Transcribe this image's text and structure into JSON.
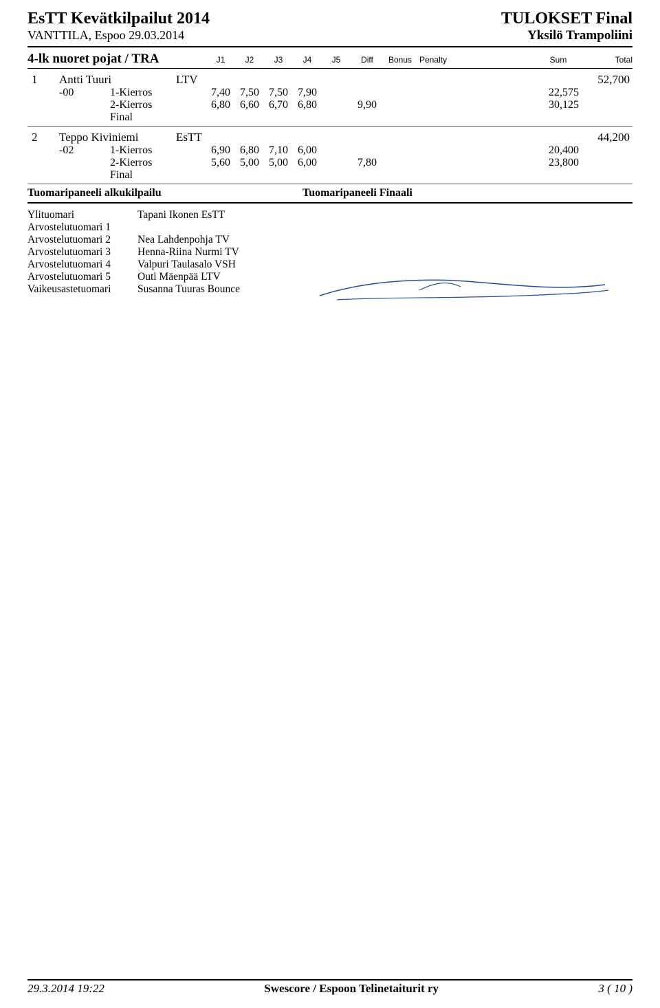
{
  "header": {
    "title_left": "EsTT Kevätkilpailut 2014",
    "title_right": "TULOKSET Final",
    "sub_left": "VANTTILA, Espoo 29.03.2014",
    "sub_right": "Yksilö Trampoliini"
  },
  "category": {
    "name": "4-lk nuoret pojat / TRA",
    "cols": [
      "J1",
      "J2",
      "J3",
      "J4",
      "J5",
      "Diff",
      "Bonus",
      "Penalty",
      "Sum",
      "Total"
    ]
  },
  "results": [
    {
      "rank": "1",
      "athlete": "Antti Tuuri",
      "club": "LTV",
      "total": "52,700",
      "id": "-00",
      "rounds": [
        {
          "label": "1-Kierros",
          "j": [
            "7,40",
            "7,50",
            "7,50",
            "7,90",
            "",
            "",
            "",
            ""
          ],
          "sum": "22,575"
        },
        {
          "label": "2-Kierros",
          "j": [
            "6,80",
            "6,60",
            "6,70",
            "6,80",
            "",
            "9,90",
            "",
            ""
          ],
          "sum": "30,125"
        },
        {
          "label": "Final",
          "j": [
            "",
            "",
            "",
            "",
            "",
            "",
            "",
            ""
          ],
          "sum": ""
        }
      ]
    },
    {
      "rank": "2",
      "athlete": "Teppo Kiviniemi",
      "club": "EsTT",
      "total": "44,200",
      "id": "-02",
      "rounds": [
        {
          "label": "1-Kierros",
          "j": [
            "6,90",
            "6,80",
            "7,10",
            "6,00",
            "",
            "",
            "",
            ""
          ],
          "sum": "20,400"
        },
        {
          "label": "2-Kierros",
          "j": [
            "5,60",
            "5,00",
            "5,00",
            "6,00",
            "",
            "7,80",
            "",
            ""
          ],
          "sum": "23,800"
        },
        {
          "label": "Final",
          "j": [
            "",
            "",
            "",
            "",
            "",
            "",
            "",
            ""
          ],
          "sum": ""
        }
      ]
    }
  ],
  "panels": {
    "left_head": "Tuomaripaneeli alkukilpailu",
    "right_head": "Tuomaripaneeli Finaali"
  },
  "judges": [
    {
      "role": "Ylituomari",
      "name": "Tapani Ikonen  EsTT"
    },
    {
      "role": "Arvostelutuomari 1",
      "name": ""
    },
    {
      "role": "Arvostelutuomari 2",
      "name": "Nea Lahdenpohja  TV"
    },
    {
      "role": "Arvostelutuomari 3",
      "name": "Henna-Riina Nurmi  TV"
    },
    {
      "role": "Arvostelutuomari 4",
      "name": "Valpuri Taulasalo  VSH"
    },
    {
      "role": "Arvostelutuomari 5",
      "name": "Outi Mäenpää  LTV"
    },
    {
      "role": "Vaikeusastetuomari",
      "name": "Susanna Tuuras  Bounce"
    }
  ],
  "footer": {
    "left": "29.3.2014   19:22",
    "center": "Swescore / Espoon Telinetaiturit ry",
    "right": "3 ( 10 )"
  },
  "colors": {
    "text": "#000000",
    "sig_stroke": "#2a4aa0"
  }
}
